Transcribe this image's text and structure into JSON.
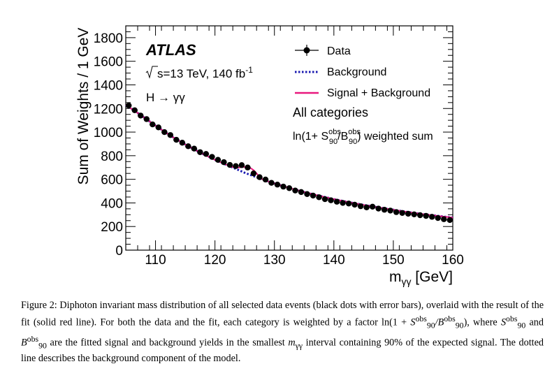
{
  "chart_data": {
    "type": "scatter",
    "xlabel": "m_γγ [GeV]",
    "xlabel_base": "m",
    "xlabel_sub": "γγ",
    "xlabel_unit": " [GeV]",
    "ylabel": "Sum of Weights / 1 GeV",
    "xlim": [
      105,
      160
    ],
    "ylim": [
      0,
      1900
    ],
    "x_ticks": [
      110,
      120,
      130,
      140,
      150,
      160
    ],
    "x_tick_labels": [
      "110",
      "120",
      "130",
      "140",
      "150",
      "160"
    ],
    "y_ticks": [
      0,
      200,
      400,
      600,
      800,
      1000,
      1200,
      1400,
      1600,
      1800
    ],
    "y_tick_labels": [
      "0",
      "200",
      "400",
      "600",
      "800",
      "1000",
      "1200",
      "1400",
      "1600",
      "1800"
    ],
    "grid": false,
    "legend_position": "top-right",
    "series": [
      {
        "name": "Data",
        "style": "markers",
        "color": "#000000",
        "x": [
          105.5,
          106.5,
          107.5,
          108.5,
          109.5,
          110.5,
          111.5,
          112.5,
          113.5,
          114.5,
          115.5,
          116.5,
          117.5,
          118.5,
          119.5,
          120.5,
          121.5,
          122.5,
          123.5,
          124.5,
          125.5,
          126.5,
          127.5,
          128.5,
          129.5,
          130.5,
          131.5,
          132.5,
          133.5,
          134.5,
          135.5,
          136.5,
          137.5,
          138.5,
          139.5,
          140.5,
          141.5,
          142.5,
          143.5,
          144.5,
          145.5,
          146.5,
          147.5,
          148.5,
          149.5,
          150.5,
          151.5,
          152.5,
          153.5,
          154.5,
          155.5,
          156.5,
          157.5,
          158.5,
          159.5
        ],
        "y": [
          1225,
          1185,
          1140,
          1110,
          1065,
          1040,
          1000,
          975,
          935,
          910,
          880,
          860,
          830,
          815,
          790,
          765,
          745,
          722,
          712,
          720,
          700,
          650,
          618,
          598,
          570,
          555,
          538,
          525,
          505,
          492,
          475,
          462,
          448,
          432,
          422,
          410,
          400,
          395,
          385,
          372,
          362,
          368,
          352,
          342,
          335,
          322,
          315,
          308,
          303,
          296,
          290,
          282,
          272,
          262,
          255
        ]
      },
      {
        "name": "Background",
        "style": "dotted",
        "color": "#1a1ab0",
        "x": [
          105,
          107.5,
          110,
          112.5,
          115,
          117.5,
          120,
          122.5,
          125,
          127.5,
          130,
          132.5,
          135,
          137.5,
          140,
          142.5,
          145,
          147.5,
          150,
          152.5,
          155,
          157.5,
          160
        ],
        "y": [
          1230,
          1145,
          1055,
          970,
          895,
          827,
          765,
          710,
          655,
          608,
          565,
          527,
          492,
          461,
          432,
          406,
          383,
          362,
          342,
          322,
          305,
          290,
          275
        ]
      },
      {
        "name": "Signal + Background",
        "style": "solid",
        "color": "#e8187e",
        "x": [
          105,
          107.5,
          110,
          112.5,
          115,
          117.5,
          120,
          121,
          122,
          122.5,
          123,
          123.5,
          124,
          124.5,
          125,
          125.5,
          126,
          126.5,
          127,
          127.5,
          128,
          129,
          130,
          132.5,
          135,
          137.5,
          140,
          142.5,
          145,
          147.5,
          150,
          152.5,
          155,
          157.5,
          160
        ],
        "y": [
          1230,
          1145,
          1055,
          970,
          895,
          827,
          765,
          743,
          722,
          712,
          704,
          700,
          700,
          703,
          705,
          703,
          695,
          678,
          650,
          620,
          600,
          582,
          565,
          527,
          492,
          461,
          432,
          406,
          383,
          362,
          342,
          322,
          305,
          290,
          275
        ]
      }
    ]
  },
  "annotations": {
    "experiment": "ATLAS",
    "energy_prefix": "s=13 TeV, 140 fb",
    "energy_superscript": "-1",
    "process": "H → γγ",
    "category": "All categories",
    "weight_text": {
      "prefix": "ln(1+ S",
      "s_sup": "obs",
      "s_sub": "90",
      "slash": "/B",
      "b_sup": "obs",
      "b_sub": "90",
      "suffix": ") weighted sum"
    }
  },
  "caption": {
    "p1": "Figure 2: Diphoton invariant mass distribution of all selected data events (black dots with error bars), overlaid with the result of the fit (solid red line). For both the data and the fit, each category is weighted by a factor ln(1 + ",
    "m1": "S",
    "m1_sup": "obs",
    "m1_sub": "90",
    "m2": "/B",
    "m2_sup": "obs",
    "m2_sub": "90",
    "p2": "), where ",
    "m3": "S",
    "m3_sup": "obs",
    "m3_sub": "90",
    "p3": " and ",
    "m4": "B",
    "m4_sup": "obs",
    "m4_sub": "90",
    "p4": " are the fitted signal and background yields in the smallest ",
    "m5": "m",
    "m5_sub": "γγ",
    "p5": " interval containing 90% of the expected signal. The dotted line describes the background component of the model."
  }
}
